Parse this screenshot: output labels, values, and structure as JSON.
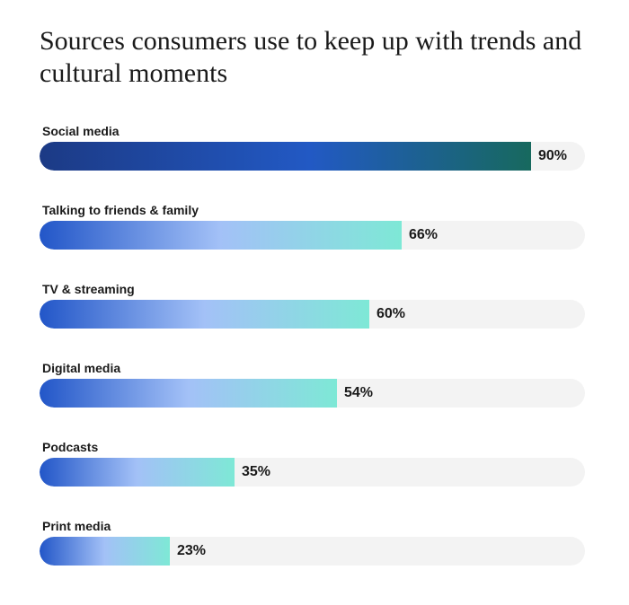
{
  "chart_data": {
    "type": "bar",
    "orientation": "horizontal",
    "title": "Sources consumers use to keep up with trends and cultural moments",
    "categories": [
      "Social media",
      "Talking to friends & family",
      "TV & streaming",
      "Digital media",
      "Podcasts",
      "Print media"
    ],
    "values": [
      90,
      66,
      60,
      54,
      35,
      23
    ],
    "value_labels": [
      "90%",
      "66%",
      "60%",
      "54%",
      "35%",
      "23%"
    ],
    "xlim": [
      0,
      100
    ],
    "grid": false,
    "colors": {
      "highlight_gradient": [
        "#1c3a85",
        "#2259c4",
        "#17695e"
      ],
      "bar_gradient": [
        "#2256c8",
        "#a3c1f7",
        "#7ee8d6"
      ],
      "track": "#f3f3f3"
    }
  }
}
